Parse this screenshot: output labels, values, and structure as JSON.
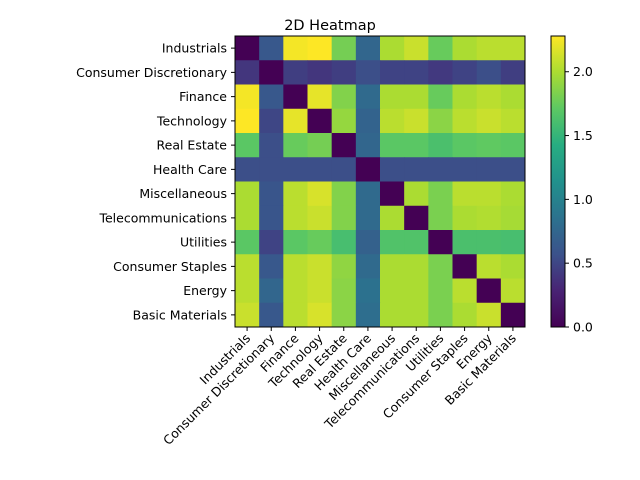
{
  "chart_data": {
    "type": "heatmap",
    "title": "2D Heatmap",
    "xlabel": "",
    "ylabel": "",
    "categories": [
      "Industrials",
      "Consumer Discretionary",
      "Finance",
      "Technology",
      "Real Estate",
      "Health Care",
      "Miscellaneous",
      "Telecommunications",
      "Utilities",
      "Consumer Staples",
      "Energy",
      "Basic Materials"
    ],
    "values": [
      [
        0.0,
        0.62,
        2.25,
        2.28,
        1.8,
        0.75,
        2.0,
        2.1,
        1.75,
        2.0,
        2.05,
        2.05
      ],
      [
        0.4,
        0.0,
        0.45,
        0.4,
        0.45,
        0.55,
        0.48,
        0.48,
        0.42,
        0.48,
        0.55,
        0.45
      ],
      [
        2.25,
        0.62,
        0.0,
        2.2,
        1.85,
        0.78,
        2.0,
        2.0,
        1.75,
        2.0,
        2.05,
        2.0
      ],
      [
        2.28,
        0.5,
        2.2,
        0.0,
        1.92,
        0.72,
        2.05,
        2.1,
        1.88,
        2.05,
        2.1,
        2.05
      ],
      [
        1.7,
        0.55,
        1.75,
        1.8,
        0.0,
        0.75,
        1.7,
        1.7,
        1.62,
        1.7,
        1.72,
        1.7
      ],
      [
        0.55,
        0.55,
        0.55,
        0.55,
        0.55,
        0.0,
        0.55,
        0.55,
        0.55,
        0.55,
        0.55,
        0.55
      ],
      [
        2.0,
        0.6,
        2.05,
        2.15,
        1.85,
        0.78,
        0.0,
        2.0,
        1.82,
        2.05,
        2.05,
        2.0
      ],
      [
        2.0,
        0.6,
        2.05,
        2.1,
        1.85,
        0.78,
        2.0,
        0.0,
        1.82,
        2.0,
        2.02,
        1.98
      ],
      [
        1.7,
        0.48,
        1.7,
        1.75,
        1.6,
        0.7,
        1.65,
        1.65,
        0.0,
        1.62,
        1.62,
        1.6
      ],
      [
        2.05,
        0.62,
        2.05,
        2.1,
        1.9,
        0.78,
        2.0,
        2.0,
        1.82,
        0.0,
        2.05,
        2.0
      ],
      [
        2.05,
        0.75,
        2.05,
        2.1,
        1.88,
        0.85,
        2.0,
        2.0,
        1.82,
        2.05,
        0.0,
        2.05
      ],
      [
        2.1,
        0.62,
        2.05,
        2.15,
        1.88,
        0.82,
        2.0,
        2.0,
        1.82,
        2.0,
        2.1,
        0.0
      ]
    ],
    "colorscale": "viridis",
    "vmin": 0.0,
    "vmax": 2.28,
    "colorbar_ticks": [
      {
        "value": 0.0,
        "label": "0.0"
      },
      {
        "value": 0.5,
        "label": "0.5"
      },
      {
        "value": 1.0,
        "label": "1.0"
      },
      {
        "value": 1.5,
        "label": "1.5"
      },
      {
        "value": 2.0,
        "label": "2.0"
      }
    ],
    "grid": false,
    "legend": "colorbar-right"
  }
}
